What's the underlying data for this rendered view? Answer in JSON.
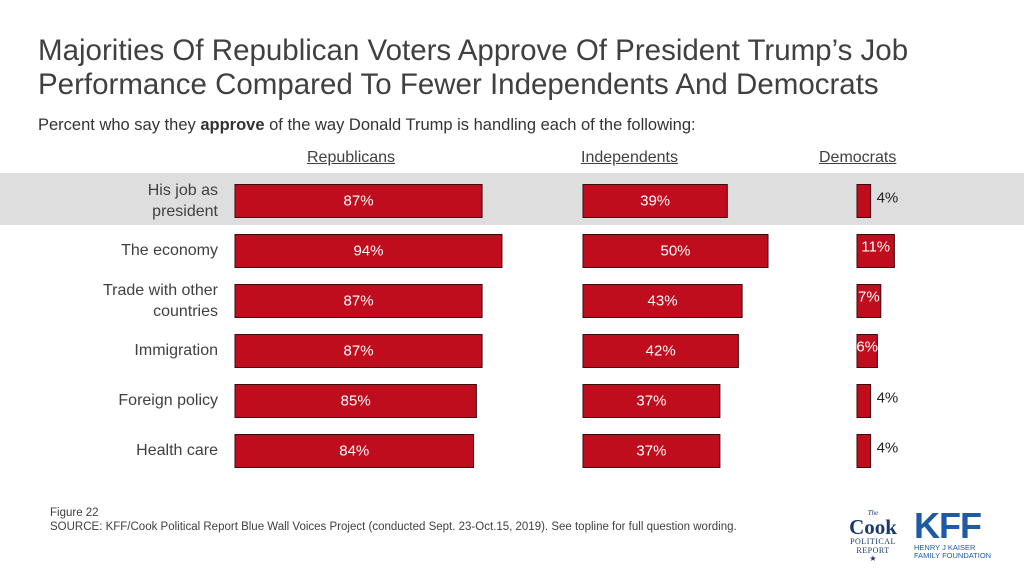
{
  "title": "Majorities Of Republican Voters Approve Of President Trump’s Job Performance Compared To Fewer Independents And Democrats",
  "subtitle": {
    "before": "Percent who say they ",
    "bold": "approve",
    "after": " of the way Donald Trump is handling each of the following:"
  },
  "colors": {
    "bar_fill": "#c00d1e",
    "bar_outline": "#3a0a0e",
    "highlight": "#dedede"
  },
  "chart_data": {
    "type": "bar",
    "orientation": "horizontal",
    "categories": [
      "His job as president",
      "The economy",
      "Trade with other countries",
      "Immigration",
      "Foreign policy",
      "Health care"
    ],
    "series": [
      {
        "name": "Republicans",
        "values": [
          87,
          94,
          87,
          87,
          85,
          84
        ],
        "labels": [
          "87%",
          "94%",
          "87%",
          "87%",
          "85%",
          "84%"
        ]
      },
      {
        "name": "Independents",
        "values": [
          39,
          50,
          43,
          42,
          37,
          37
        ],
        "labels": [
          "39%",
          "50%",
          "43%",
          "42%",
          "37%",
          "37%"
        ]
      },
      {
        "name": "Democrats",
        "values": [
          4,
          11,
          7,
          6,
          4,
          4
        ],
        "labels": [
          "4%",
          "11%",
          "7%",
          "6%",
          "4%",
          "4%"
        ]
      }
    ],
    "highlighted_category": "His job as president"
  },
  "footer": {
    "figure": "Figure 22",
    "source": "SOURCE: KFF/Cook Political Report Blue Wall Voices Project (conducted Sept. 23-Oct.15, 2019). See topline for full question wording."
  },
  "logos": {
    "cook": {
      "the": "The",
      "name": "Cook",
      "line1": "POLITICAL",
      "line2": "REPORT",
      "star": "★"
    },
    "kff": {
      "name": "KFF",
      "line1": "HENRY J KAISER",
      "line2": "FAMILY FOUNDATION"
    }
  }
}
